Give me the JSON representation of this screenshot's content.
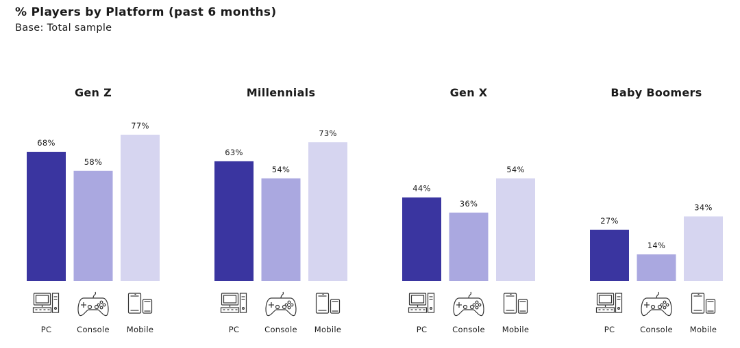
{
  "header": {
    "title": "% Players by Platform (past 6 months)",
    "subtitle": "Base: Total sample"
  },
  "chart_data": {
    "type": "bar",
    "ylim": [
      0,
      100
    ],
    "groups": [
      {
        "name": "Gen Z",
        "values": [
          68,
          58,
          77
        ],
        "labels": [
          "68%",
          "58%",
          "77%"
        ]
      },
      {
        "name": "Millennials",
        "values": [
          63,
          54,
          73
        ],
        "labels": [
          "63%",
          "54%",
          "73%"
        ]
      },
      {
        "name": "Gen X",
        "values": [
          44,
          36,
          54
        ],
        "labels": [
          "44%",
          "36%",
          "54%"
        ]
      },
      {
        "name": "Baby Boomers",
        "values": [
          27,
          14,
          34
        ],
        "labels": [
          "27%",
          "14%",
          "34%"
        ]
      }
    ],
    "categories": [
      "PC",
      "Console",
      "Mobile"
    ],
    "category_icons": [
      "pc-icon",
      "console-icon",
      "mobile-icon"
    ],
    "colors": [
      "#3a35a0",
      "#aaa8e0",
      "#d6d5f0"
    ]
  }
}
